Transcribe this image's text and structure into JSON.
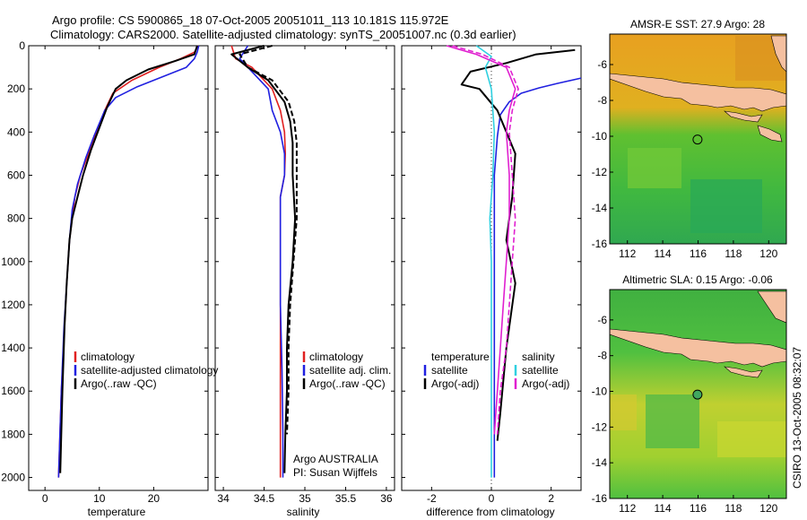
{
  "figure": {
    "title_line1": "Argo profile: CS 5900865_18 07-Oct-2005 20051011_113 10.181S 115.972E",
    "title_line2": "Climatology: CARS2000. Satellite-adjusted climatology: synTS_20051007.nc (0.3d earlier)",
    "credit": "CSIRO 13-Oct-2005 08:32:07",
    "argo_credit_1": "Argo AUSTRALIA",
    "argo_credit_2": "PI: Susan Wijffels"
  },
  "colors": {
    "climatology": "#e02020",
    "satellite": "#2020e0",
    "argo": "#000000",
    "salinity_sat": "#30d0e0",
    "salinity_argo": "#e020d0"
  },
  "chart_data": [
    {
      "type": "line",
      "xlabel": "temperature",
      "ylabel": "",
      "xlim": [
        -3,
        30
      ],
      "ylim": [
        2060,
        0
      ],
      "xticks": [
        0,
        10,
        20
      ],
      "yticks": [
        0,
        200,
        400,
        600,
        800,
        1000,
        1200,
        1400,
        1600,
        1800,
        2000
      ],
      "legend": [
        "climatology",
        "satellite-adjusted climatology",
        "Argo(..raw -QC)"
      ],
      "series": [
        {
          "name": "climatology",
          "color": "red",
          "style": "solid",
          "x": [
            28.2,
            27.5,
            25,
            21,
            16,
            12.5,
            11,
            9.5,
            8,
            6.5,
            5.5,
            5,
            4.5,
            4,
            3.6,
            3,
            2.5
          ],
          "y": [
            0,
            30,
            60,
            100,
            160,
            220,
            300,
            400,
            500,
            600,
            700,
            800,
            900,
            1100,
            1300,
            1600,
            2000
          ]
        },
        {
          "name": "satellite-adjusted climatology",
          "color": "blue",
          "style": "solid",
          "x": [
            28.3,
            28,
            27.5,
            26,
            22,
            17,
            13,
            11,
            9,
            7.5,
            6,
            5,
            4.5,
            4,
            3.5,
            3,
            2.5
          ],
          "y": [
            0,
            30,
            60,
            100,
            140,
            190,
            240,
            300,
            420,
            520,
            640,
            760,
            900,
            1100,
            1300,
            1600,
            2000
          ]
        },
        {
          "name": "Argo(..raw -QC)",
          "color": "black",
          "style": "solid",
          "x": [
            28,
            27.5,
            24,
            19,
            15,
            13,
            11.5,
            10,
            8.5,
            7,
            6,
            5,
            4.5,
            4,
            3.6,
            3.2,
            2.8
          ],
          "y": [
            0,
            40,
            70,
            110,
            160,
            200,
            280,
            380,
            480,
            600,
            700,
            800,
            900,
            1100,
            1300,
            1600,
            1980
          ]
        }
      ]
    },
    {
      "type": "line",
      "xlabel": "salinity",
      "xlim": [
        33.9,
        36.1
      ],
      "ylim": [
        2060,
        0
      ],
      "xticks": [
        34,
        34.5,
        35,
        35.5,
        36
      ],
      "legend": [
        "climatology",
        "satellite adj. clim.",
        "Argo(..raw -QC)"
      ],
      "series": [
        {
          "name": "climatology",
          "color": "red",
          "style": "solid",
          "x": [
            34.1,
            34.15,
            34.35,
            34.6,
            34.7,
            34.75,
            34.76,
            34.75,
            34.7,
            34.7,
            34.7,
            34.7,
            34.7,
            34.7
          ],
          "y": [
            0,
            60,
            100,
            200,
            300,
            400,
            500,
            600,
            700,
            900,
            1200,
            1500,
            1800,
            2000
          ]
        },
        {
          "name": "satellite adj. clim.",
          "color": "blue",
          "style": "solid",
          "x": [
            34.3,
            34.2,
            34.3,
            34.55,
            34.6,
            34.7,
            34.75,
            34.75,
            34.7,
            34.7,
            34.7,
            34.72,
            34.73,
            34.73
          ],
          "y": [
            0,
            60,
            100,
            200,
            300,
            400,
            500,
            600,
            700,
            900,
            1200,
            1500,
            1800,
            2000
          ]
        },
        {
          "name": "Argo(..raw -QC)",
          "color": "black",
          "style": "solid",
          "x": [
            34.5,
            34.1,
            34.3,
            34.55,
            34.75,
            34.82,
            34.85,
            34.85,
            34.88,
            34.85,
            34.8,
            34.78,
            34.78,
            34.76,
            34.75
          ],
          "y": [
            0,
            40,
            100,
            160,
            260,
            350,
            450,
            600,
            800,
            1000,
            1200,
            1400,
            1600,
            1800,
            1980
          ]
        },
        {
          "name": "Argo(-adj)",
          "color": "black",
          "style": "dashed",
          "x": [
            34.6,
            34.2,
            34.3,
            34.6,
            34.8,
            34.87,
            34.9,
            34.9,
            34.9,
            34.86,
            34.82,
            34.8,
            34.8,
            34.78
          ],
          "y": [
            0,
            40,
            100,
            160,
            260,
            350,
            450,
            600,
            800,
            1000,
            1200,
            1400,
            1600,
            1800
          ]
        }
      ]
    },
    {
      "type": "line",
      "xlabel": "difference from climatology",
      "xlim": [
        -3,
        3
      ],
      "ylim": [
        2060,
        0
      ],
      "xticks": [
        -2,
        0,
        2
      ],
      "legend_title_left": "temperature",
      "legend_title_right": "salinity",
      "legend_left": [
        "satellite",
        "Argo(-adj)"
      ],
      "legend_right": [
        "satellite",
        "Argo(-adj)"
      ],
      "series": [
        {
          "name": "temperature satellite",
          "color": "blue",
          "style": "solid",
          "x": [
            3,
            2.2,
            1.6,
            1.0,
            0.6,
            0.3,
            0.2,
            0.1,
            0.1,
            0.1,
            0.1,
            0.1,
            0.1
          ],
          "y": [
            150,
            175,
            195,
            220,
            260,
            320,
            420,
            600,
            800,
            1000,
            1400,
            1800,
            2000
          ]
        },
        {
          "name": "temperature Argo(-adj)",
          "color": "black",
          "style": "solid",
          "x": [
            2.8,
            1.5,
            0.5,
            -0.7,
            -1.0,
            -0.4,
            0.2,
            0.5,
            0.8,
            0.7,
            0.5,
            0.8,
            0.5,
            0.3,
            0.2
          ],
          "y": [
            20,
            40,
            80,
            120,
            180,
            200,
            300,
            400,
            500,
            700,
            900,
            1100,
            1400,
            1700,
            1830
          ]
        },
        {
          "name": "salinity satellite",
          "color": "cyan",
          "style": "solid",
          "x": [
            -0.5,
            0,
            -0.2,
            0,
            0.1,
            0.05,
            -0.05,
            0,
            0,
            0
          ],
          "y": [
            0,
            50,
            100,
            200,
            400,
            600,
            800,
            1000,
            1500,
            2000
          ]
        },
        {
          "name": "salinity Argo(-adj) solid",
          "color": "magenta",
          "style": "solid",
          "x": [
            -1.5,
            -0.5,
            0.5,
            0.8,
            0.6,
            0.5,
            0.6,
            0.6,
            0.5,
            0.4,
            0.3,
            0.2,
            0.1
          ],
          "y": [
            0,
            40,
            100,
            200,
            300,
            400,
            600,
            800,
            1000,
            1200,
            1400,
            1600,
            1800
          ]
        },
        {
          "name": "salinity Argo(-adj) dashed",
          "color": "magenta",
          "style": "dashed",
          "x": [
            -1.3,
            -0.3,
            0.6,
            0.9,
            0.7,
            0.6,
            0.7,
            0.8,
            0.7,
            0.6,
            0.5,
            0.3,
            0.2
          ],
          "y": [
            0,
            40,
            100,
            200,
            300,
            400,
            600,
            800,
            1000,
            1200,
            1400,
            1600,
            1800
          ]
        }
      ]
    },
    {
      "type": "heatmap",
      "title": "AMSR-E SST: 27.9 Argo: 28",
      "xlim": [
        111,
        121
      ],
      "ylim": [
        -16,
        -4.3
      ],
      "xticks": [
        112,
        114,
        116,
        118,
        120
      ],
      "yticks": [
        -6,
        -8,
        -10,
        -12,
        -14,
        -16
      ],
      "marker": {
        "lon": 115.97,
        "lat": -10.18
      }
    },
    {
      "type": "heatmap",
      "title": "Altimetric SLA: 0.15 Argo: -0.06",
      "xlim": [
        111,
        121
      ],
      "ylim": [
        -16,
        -4.3
      ],
      "xticks": [
        112,
        114,
        116,
        118,
        120
      ],
      "yticks": [
        -6,
        -8,
        -10,
        -12,
        -14,
        -16
      ],
      "marker": {
        "lon": 115.97,
        "lat": -10.18
      }
    }
  ]
}
